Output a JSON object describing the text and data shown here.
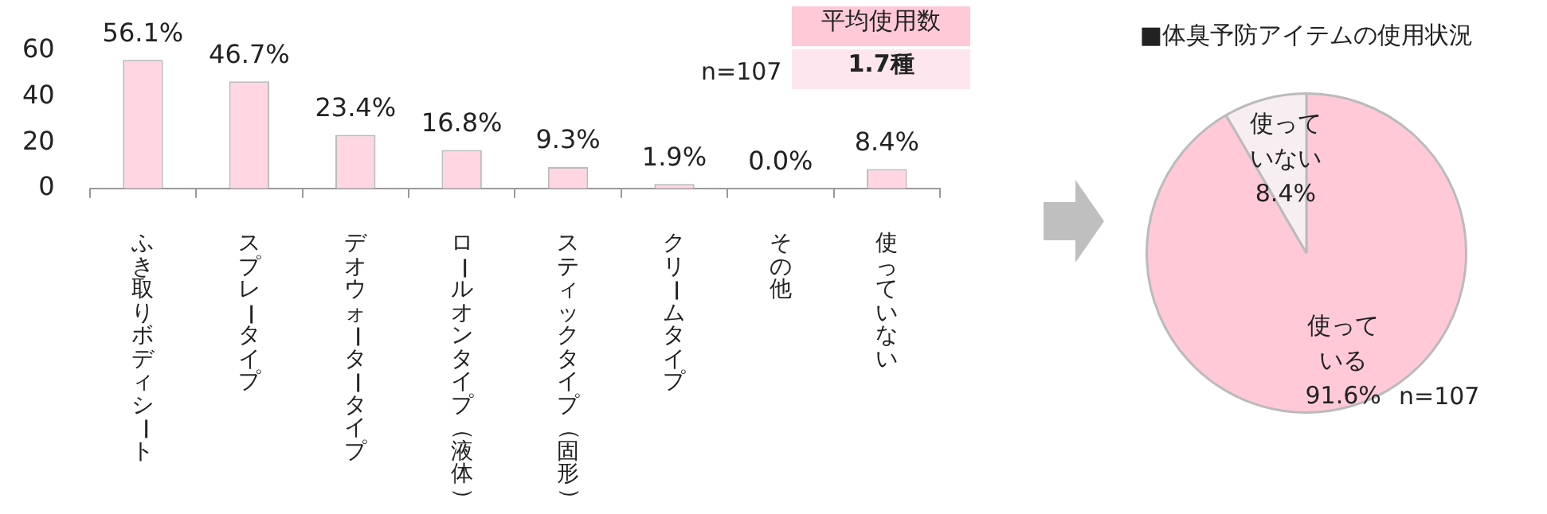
{
  "chart_data": [
    {
      "type": "bar",
      "categories": [
        "ふき取りボディシート",
        "スプレータイプ",
        "デオウォータータイプ",
        "ロールオンタイプ（液体）",
        "スティックタイプ（固形）",
        "クリームタイプ",
        "その他",
        "使っていない"
      ],
      "values": [
        56.1,
        46.7,
        23.4,
        16.8,
        9.3,
        1.9,
        0.0,
        8.4
      ],
      "value_labels": [
        "56.1%",
        "46.7%",
        "23.4%",
        "16.8%",
        "9.3%",
        "1.9%",
        "0.0%",
        "8.4%"
      ],
      "color": "#ffd6e2",
      "ylim": [
        0,
        60
      ],
      "yticks": [
        0,
        20,
        40,
        60
      ],
      "grid": false,
      "annotations": [
        "n=107",
        "平均使用数",
        "1.7種"
      ]
    },
    {
      "type": "pie",
      "title": "■体臭予防アイテムの使用状況",
      "categories": [
        "使っている",
        "使っていない"
      ],
      "values": [
        91.6,
        8.4
      ],
      "value_labels": [
        "91.6%",
        "8.4%"
      ],
      "colors": [
        "#ffc9d8",
        "#f7eef1"
      ],
      "annotations": [
        "n=107"
      ]
    }
  ]
}
